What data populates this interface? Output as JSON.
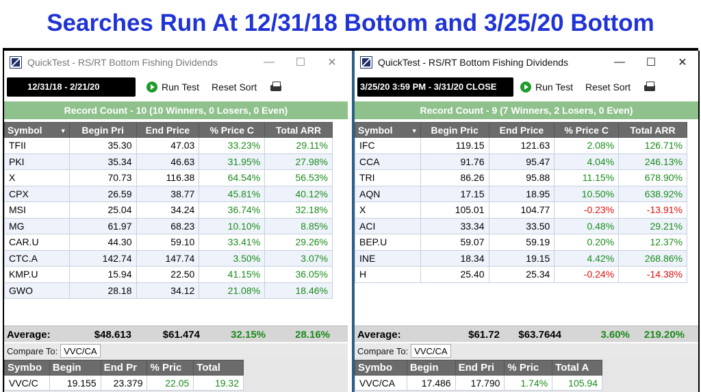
{
  "page_title": "Searches Run At 12/31/18 Bottom and 3/25/20 Bottom",
  "windows": [
    {
      "title": "QuickTest - RS/RT Bottom Fishing Dividends",
      "controls": {
        "minimize": "—",
        "maximize": "☐",
        "close": "✕"
      },
      "date_range": "12/31/18 - 2/21/20",
      "run_test": "Run Test",
      "reset_sort": "Reset Sort",
      "record_count": "Record Count - 10 (10 Winners, 0 Losers, 0 Even)",
      "columns": [
        "Symbol",
        "Begin Pri",
        "End Price",
        "% Price C",
        "Total ARR"
      ],
      "rows": [
        [
          "TFII",
          "35.30",
          "47.03",
          "33.23%",
          "29.11%"
        ],
        [
          "PKI",
          "35.34",
          "46.63",
          "31.95%",
          "27.98%"
        ],
        [
          "X",
          "70.73",
          "116.38",
          "64.54%",
          "56.53%"
        ],
        [
          "CPX",
          "26.59",
          "38.77",
          "45.81%",
          "40.12%"
        ],
        [
          "MSI",
          "25.04",
          "34.24",
          "36.74%",
          "32.18%"
        ],
        [
          "MG",
          "61.97",
          "68.23",
          "10.10%",
          "8.85%"
        ],
        [
          "CAR.U",
          "44.30",
          "59.10",
          "33.41%",
          "29.26%"
        ],
        [
          "CTC.A",
          "142.74",
          "147.74",
          "3.50%",
          "3.07%"
        ],
        [
          "KMP.U",
          "15.94",
          "22.50",
          "41.15%",
          "36.05%"
        ],
        [
          "GWO",
          "28.18",
          "34.12",
          "21.08%",
          "18.46%"
        ]
      ],
      "average": {
        "label": "Average:",
        "begin": "$48.613",
        "end": "$61.474",
        "pct": "32.15%",
        "arr": "28.16%"
      },
      "compare_label": "Compare To:",
      "compare_value": "VVC/CA",
      "compare_columns": [
        "Symbo",
        "Begin",
        "End Pr",
        "% Pric",
        "Total"
      ],
      "compare_row": [
        "VVC/C",
        "19.155",
        "23.379",
        "22.05",
        "19.32"
      ]
    },
    {
      "title": "QuickTest - RS/RT Bottom Fishing Dividends",
      "controls": {
        "minimize": "—",
        "maximize": "☐",
        "close": "✕"
      },
      "date_range": "3/25/20 3:59 PM - 3/31/20  CLOSE",
      "run_test": "Run Test",
      "reset_sort": "Reset Sort",
      "record_count": "Record Count - 9 (7 Winners, 2 Losers, 0 Even)",
      "columns": [
        "Symbol",
        "Begin Pric",
        "End Price",
        "% Price C",
        "Total ARR"
      ],
      "rows": [
        [
          "IFC",
          "119.15",
          "121.63",
          "2.08%",
          "126.71%"
        ],
        [
          "CCA",
          "91.76",
          "95.47",
          "4.04%",
          "246.13%"
        ],
        [
          "TRI",
          "86.26",
          "95.88",
          "11.15%",
          "678.90%"
        ],
        [
          "AQN",
          "17.15",
          "18.95",
          "10.50%",
          "638.92%"
        ],
        [
          "X",
          "105.01",
          "104.77",
          "-0.23%",
          "-13.91%"
        ],
        [
          "ACI",
          "33.34",
          "33.50",
          "0.48%",
          "29.21%"
        ],
        [
          "BEP.U",
          "59.07",
          "59.19",
          "0.20%",
          "12.37%"
        ],
        [
          "INE",
          "18.34",
          "19.15",
          "4.42%",
          "268.86%"
        ],
        [
          "H",
          "25.40",
          "25.34",
          "-0.24%",
          "-14.38%"
        ]
      ],
      "average": {
        "label": "Average:",
        "begin": "$61.72",
        "end": "$63.7644",
        "pct": "3.60%",
        "arr": "219.20%"
      },
      "compare_label": "Compare To:",
      "compare_value": "VVC/CA",
      "compare_columns": [
        "Symbo",
        "Begin",
        "End Pri",
        "% Pric",
        "Total A"
      ],
      "compare_row": [
        "VVC/CA",
        "17.486",
        "17.790",
        "1.74%",
        "105.94"
      ]
    }
  ],
  "icons": {
    "app": "app-logo-icon",
    "run": "play-icon",
    "print": "printer-icon",
    "sort": "sort-down-icon"
  },
  "colors": {
    "title": "#1f33d6",
    "record_bar": "#8fc18c",
    "positive": "#1a8a1a",
    "negative": "#e01010",
    "header": "#6b6b6b"
  }
}
